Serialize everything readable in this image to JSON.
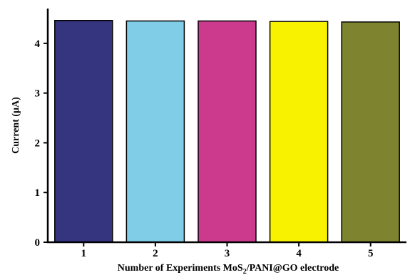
{
  "chart_data": {
    "type": "bar",
    "categories": [
      "1",
      "2",
      "3",
      "4",
      "5"
    ],
    "values": [
      4.46,
      4.45,
      4.45,
      4.44,
      4.43
    ],
    "colors": [
      "#34347f",
      "#7fcde6",
      "#cc3a8e",
      "#f8f200",
      "#7d832f"
    ],
    "xlabel_prefix": "Number of Experiments MoS",
    "xlabel_sub": "2",
    "xlabel_suffix": "/PANI@GO electrode",
    "ylabel": "Current (µA)",
    "ylim": [
      0,
      4.7
    ],
    "yticks": [
      "0",
      "1",
      "2",
      "3",
      "4"
    ],
    "grid": false
  }
}
